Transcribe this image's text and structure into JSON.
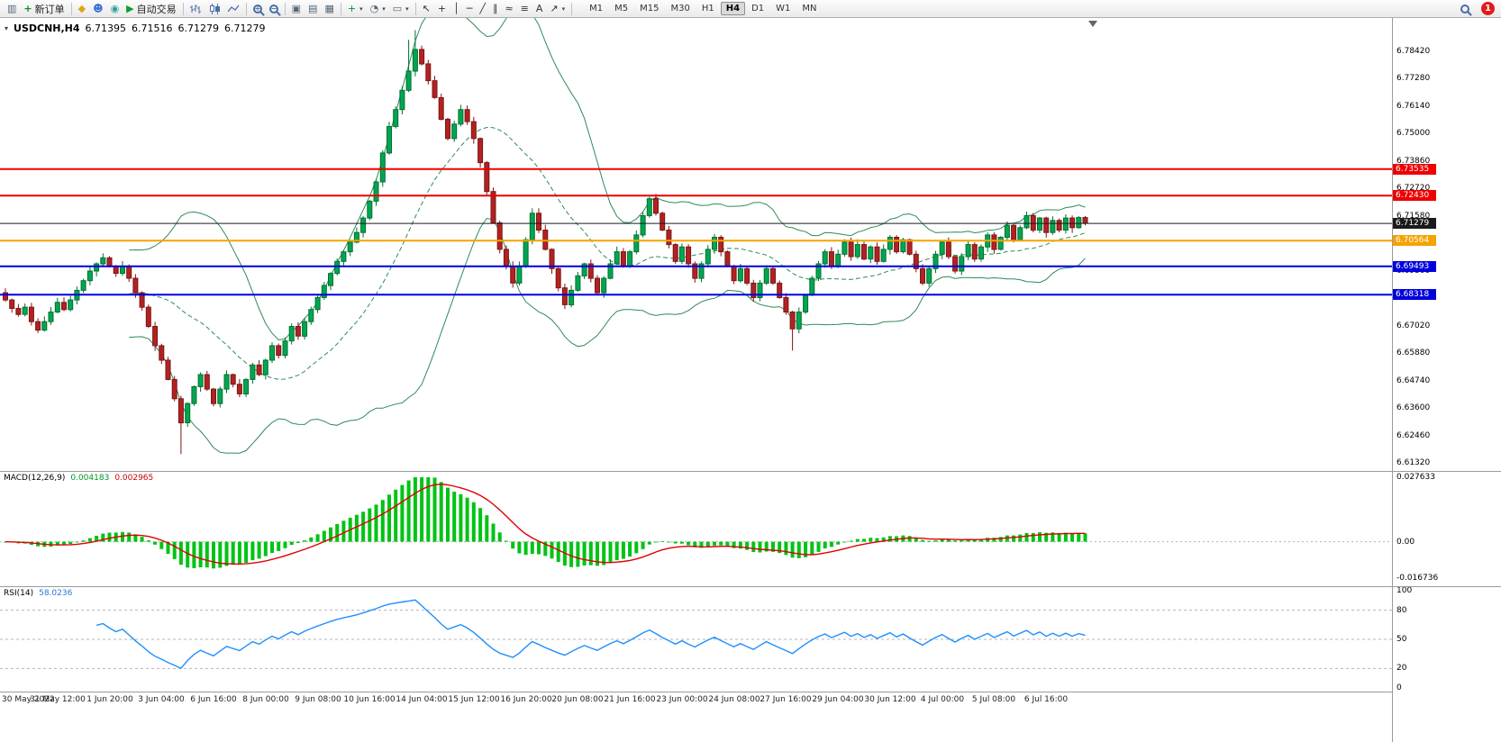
{
  "toolbar": {
    "groups": [
      [
        {
          "name": "new-chart-icon",
          "kind": "glyph",
          "glyph": "▥",
          "color": "#556677"
        },
        {
          "name": "new-order-button",
          "kind": "labeled",
          "icon": "+",
          "iconColor": "#0a8f2e",
          "label": "新订单"
        }
      ],
      [
        {
          "name": "mql5-community-icon",
          "kind": "glyph",
          "glyph": "◆",
          "color": "#dba617"
        },
        {
          "name": "user-profile-icon",
          "kind": "glyph",
          "glyph": "☻",
          "color": "#3b6fd4"
        },
        {
          "name": "metaquotes-icon",
          "kind": "glyph",
          "glyph": "◉",
          "color": "#2f9e9e"
        },
        {
          "name": "auto-trading-button",
          "kind": "labeled",
          "icon": "▶",
          "iconColor": "#0a9e2e",
          "label": "自动交易"
        }
      ],
      [
        {
          "name": "bar-chart-type-icon",
          "kind": "bars"
        },
        {
          "name": "candlestick-chart-type-icon",
          "kind": "candles"
        },
        {
          "name": "line-chart-type-icon",
          "kind": "linechart"
        }
      ],
      [
        {
          "name": "zoom-in-icon",
          "kind": "magnifier",
          "sign": "+"
        },
        {
          "name": "zoom-out-icon",
          "kind": "magnifier",
          "sign": "−"
        }
      ],
      [
        {
          "name": "tile-windows-icon",
          "kind": "glyph",
          "glyph": "▣",
          "color": "#556677"
        },
        {
          "name": "cascade-windows-icon",
          "kind": "glyph",
          "glyph": "▤",
          "color": "#556677"
        },
        {
          "name": "auto-arrange-icon",
          "kind": "glyph",
          "glyph": "▦",
          "color": "#556677"
        }
      ],
      [
        {
          "name": "add-indicator-icon",
          "kind": "glyph",
          "glyph": "+",
          "color": "#0a8f2e",
          "caret": true
        },
        {
          "name": "periods-icon",
          "kind": "glyph",
          "glyph": "◔",
          "color": "#556677",
          "caret": true
        },
        {
          "name": "templates-icon",
          "kind": "glyph",
          "glyph": "▭",
          "color": "#556677",
          "caret": true
        }
      ],
      [
        {
          "name": "cursor-icon",
          "kind": "glyph",
          "glyph": "↖",
          "color": "#333333"
        },
        {
          "name": "crosshair-icon",
          "kind": "glyph",
          "glyph": "+",
          "color": "#333333"
        },
        {
          "name": "vertical-line-icon",
          "kind": "glyph",
          "glyph": "│",
          "color": "#333333"
        },
        {
          "name": "horizontal-line-icon",
          "kind": "glyph",
          "glyph": "─",
          "color": "#333333"
        },
        {
          "name": "trendline-icon",
          "kind": "glyph",
          "glyph": "╱",
          "color": "#333333"
        },
        {
          "name": "channel-icon",
          "kind": "glyph",
          "glyph": "∥",
          "color": "#333333"
        },
        {
          "name": "fibonacci-icon",
          "kind": "glyph",
          "glyph": "≈",
          "color": "#333333"
        },
        {
          "name": "shapes-icon",
          "kind": "glyph",
          "glyph": "≡",
          "color": "#333333"
        },
        {
          "name": "text-icon",
          "kind": "glyph",
          "glyph": "A",
          "color": "#333333"
        },
        {
          "name": "arrows-icon",
          "kind": "glyph",
          "glyph": "↗",
          "color": "#333333",
          "caret": true
        }
      ]
    ],
    "timeframes": [
      "M1",
      "M5",
      "M15",
      "M30",
      "H1",
      "H4",
      "D1",
      "W1",
      "MN"
    ],
    "active_timeframe": "H4",
    "notification_count": "1"
  },
  "quote": {
    "dropdown_icon": "▾",
    "symbol": "USDCNH,H4",
    "open": "6.71395",
    "high": "6.71516",
    "low": "6.71279",
    "close": "6.71279"
  },
  "main_chart": {
    "price_axis_labels": [
      "6.78420",
      "6.77280",
      "6.76140",
      "6.75000",
      "6.73860",
      "6.72720",
      "6.71580",
      "6.70440",
      "6.69300",
      "6.68160",
      "6.67020",
      "6.65880",
      "6.64740",
      "6.63600",
      "6.62460",
      "6.61320"
    ],
    "lines": [
      {
        "name": "resistance-line-1",
        "price": 6.73535,
        "label": "6.73535",
        "color": "#ee0000",
        "width": 2
      },
      {
        "name": "resistance-line-2",
        "price": 6.7243,
        "label": "6.72430",
        "color": "#ee0000",
        "width": 2
      },
      {
        "name": "bid-price-line",
        "price": 6.71279,
        "label": "6.71279",
        "color": "#1a1a1a",
        "width": 1
      },
      {
        "name": "pivot-line",
        "price": 6.70564,
        "label": "6.70564",
        "color": "#f5a300",
        "width": 2
      },
      {
        "name": "support-line-1",
        "price": 6.69493,
        "label": "6.69493",
        "color": "#0000dd",
        "width": 2
      },
      {
        "name": "support-line-2",
        "price": 6.68318,
        "label": "6.68318",
        "color": "#0000dd",
        "width": 2
      }
    ],
    "colors": {
      "up_candle": "#00a651",
      "down_candle": "#b22222",
      "bollinger": "#2e8b57"
    }
  },
  "chart_data": {
    "type": "candlestick",
    "symbol": "USDCNH",
    "timeframe": "H4",
    "ylim": [
      6.612,
      6.795
    ],
    "first_open": 6.684,
    "closes": [
      6.681,
      6.6775,
      6.675,
      6.678,
      6.672,
      6.6685,
      6.672,
      6.676,
      6.68,
      6.677,
      6.681,
      6.685,
      6.689,
      6.693,
      6.696,
      6.6985,
      6.695,
      6.692,
      6.695,
      6.69,
      6.684,
      6.678,
      6.67,
      6.662,
      6.656,
      6.648,
      6.64,
      6.63,
      6.638,
      6.645,
      6.65,
      6.644,
      6.638,
      6.644,
      6.65,
      6.646,
      6.642,
      6.648,
      6.654,
      6.65,
      6.656,
      6.662,
      6.658,
      6.664,
      6.67,
      6.666,
      6.672,
      6.677,
      6.682,
      6.687,
      6.692,
      6.697,
      6.701,
      6.705,
      6.709,
      6.715,
      6.722,
      6.73,
      6.742,
      6.753,
      6.76,
      6.768,
      6.776,
      6.785,
      6.779,
      6.772,
      6.765,
      6.756,
      6.748,
      6.754,
      6.76,
      6.755,
      6.748,
      6.738,
      6.726,
      6.713,
      6.702,
      6.695,
      6.688,
      6.695,
      6.706,
      6.717,
      6.71,
      6.702,
      6.694,
      6.686,
      6.679,
      6.685,
      6.691,
      6.696,
      6.69,
      6.684,
      6.69,
      6.696,
      6.701,
      6.695,
      6.701,
      6.708,
      6.716,
      6.723,
      6.717,
      6.71,
      6.704,
      6.697,
      6.703,
      6.696,
      6.69,
      6.696,
      6.702,
      6.707,
      6.701,
      6.695,
      6.689,
      6.694,
      6.688,
      6.682,
      6.688,
      6.694,
      6.688,
      6.682,
      6.676,
      6.669,
      6.676,
      6.683,
      6.69,
      6.696,
      6.701,
      6.695,
      6.7,
      6.705,
      6.699,
      6.704,
      6.698,
      6.703,
      6.697,
      6.702,
      6.707,
      6.701,
      6.706,
      6.7,
      6.694,
      6.688,
      6.694,
      6.7,
      6.705,
      6.699,
      6.693,
      6.699,
      6.704,
      6.698,
      6.703,
      6.708,
      6.702,
      6.707,
      6.712,
      6.706,
      6.711,
      6.716,
      6.71,
      6.715,
      6.709,
      6.714,
      6.71,
      6.715,
      6.711,
      6.7152,
      6.71279
    ],
    "wick_overrides": {
      "27": {
        "low": 6.617
      },
      "62": {
        "high": 6.789
      },
      "63": {
        "high": 6.793
      },
      "121": {
        "low": 6.66
      }
    },
    "bollinger": {
      "period": 20,
      "deviation": 2
    },
    "macd": {
      "fast": 12,
      "slow": 26,
      "signal": 9
    },
    "rsi": {
      "period": 14
    }
  },
  "macd_panel": {
    "title": "MACD(12,26,9)",
    "value_main": "0.004183",
    "value_signal": "0.002965",
    "axis": [
      "0.027633",
      "0.00",
      "-0.016736"
    ],
    "axis_max": 0.027633,
    "axis_min": -0.016736,
    "histogram_color": "#00c314",
    "signal_color": "#e00000"
  },
  "rsi_panel": {
    "title": "RSI(14)",
    "value": "58.0236",
    "axis": [
      "100",
      "80",
      "50",
      "20",
      "0"
    ],
    "levels": [
      80,
      50,
      20
    ],
    "line_color": "#1e90ff"
  },
  "time_axis": {
    "labels": [
      "30 May 2022",
      "31 May 12:00",
      "1 Jun 20:00",
      "3 Jun 04:00",
      "6 Jun 16:00",
      "8 Jun 00:00",
      "9 Jun 08:00",
      "10 Jun 16:00",
      "14 Jun 04:00",
      "15 Jun 12:00",
      "16 Jun 20:00",
      "20 Jun 08:00",
      "21 Jun 16:00",
      "23 Jun 00:00",
      "24 Jun 08:00",
      "27 Jun 16:00",
      "29 Jun 04:00",
      "30 Jun 12:00",
      "4 Jul 00:00",
      "5 Jul 08:00",
      "6 Jul 16:00"
    ]
  }
}
